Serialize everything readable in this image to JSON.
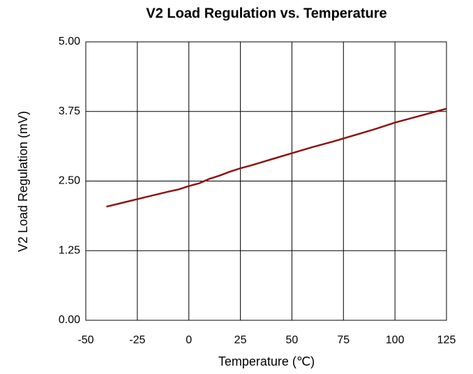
{
  "chart_data": {
    "type": "line",
    "title": "V2 Load Regulation vs. Temperature",
    "xlabel": "Temperature (℃)",
    "ylabel": "V2 Load Regulation (mV)",
    "x": [
      -40,
      -30,
      -20,
      -10,
      -5,
      0,
      5,
      10,
      15,
      20,
      25,
      30,
      40,
      50,
      60,
      70,
      80,
      90,
      100,
      110,
      120,
      125
    ],
    "values": [
      2.04,
      2.13,
      2.22,
      2.31,
      2.35,
      2.41,
      2.46,
      2.54,
      2.6,
      2.67,
      2.73,
      2.78,
      2.89,
      3.0,
      3.11,
      3.21,
      3.32,
      3.43,
      3.55,
      3.65,
      3.75,
      3.8
    ],
    "color": "#8b1414",
    "xlim": [
      -50,
      125
    ],
    "xticks": [
      -50,
      -25,
      0,
      25,
      50,
      75,
      100,
      125
    ],
    "ylim": [
      0,
      5
    ],
    "yticks": [
      {
        "value": 0,
        "label": "0.00"
      },
      1.25,
      {
        "value": 2.5,
        "label": "2.50"
      },
      3.75,
      {
        "value": 5,
        "label": "5.00"
      }
    ],
    "grid": true
  }
}
